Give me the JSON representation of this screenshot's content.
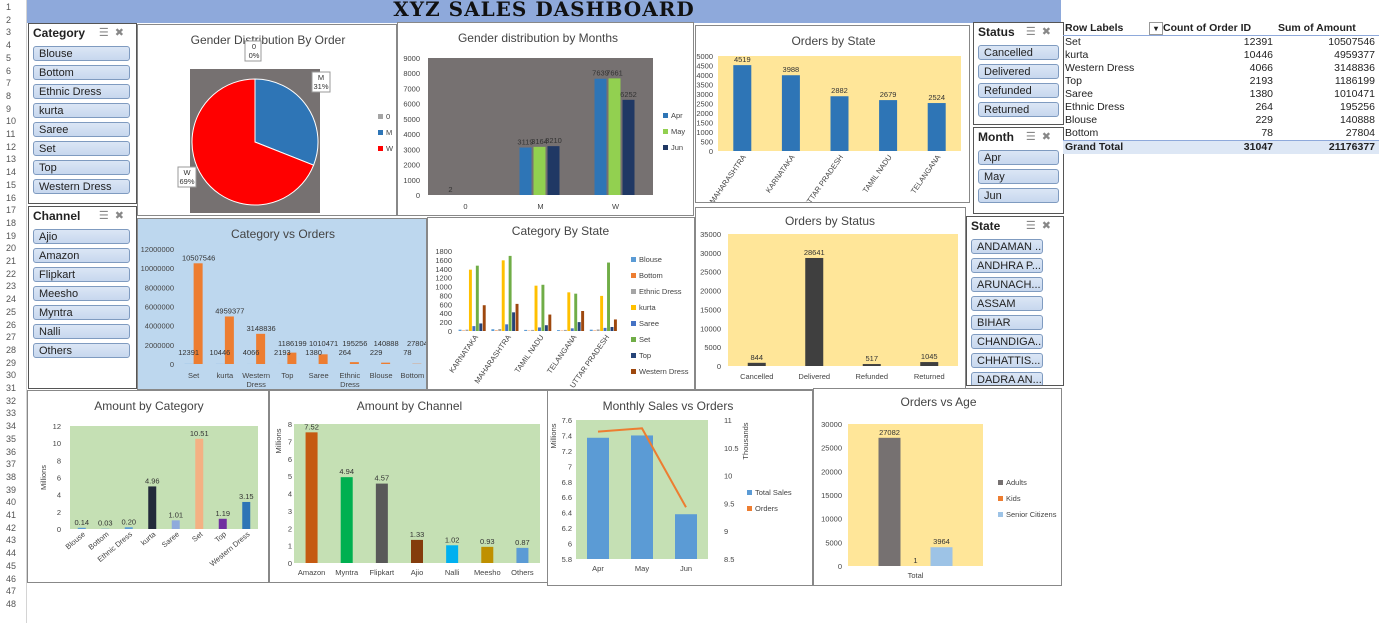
{
  "dashboard_title": "XYZ SALES DASHBOARD",
  "row_numbers": [
    "1",
    "2",
    "3",
    "4",
    "5",
    "6",
    "7",
    "8",
    "9",
    "10",
    "11",
    "12",
    "13",
    "14",
    "15",
    "16",
    "17",
    "18",
    "19",
    "20",
    "21",
    "22",
    "23",
    "24",
    "25",
    "26",
    "27",
    "28",
    "29",
    "30",
    "31",
    "32",
    "33",
    "34",
    "35",
    "36",
    "37",
    "38",
    "39",
    "40",
    "41",
    "42",
    "43",
    "44",
    "45",
    "46",
    "47",
    "48"
  ],
  "slicers": {
    "category": {
      "title": "Category",
      "items": [
        "Blouse",
        "Bottom",
        "Ethnic Dress",
        "kurta",
        "Saree",
        "Set",
        "Top",
        "Western Dress"
      ]
    },
    "channel": {
      "title": "Channel",
      "items": [
        "Ajio",
        "Amazon",
        "Flipkart",
        "Meesho",
        "Myntra",
        "Nalli",
        "Others"
      ]
    },
    "status": {
      "title": "Status",
      "items": [
        "Cancelled",
        "Delivered",
        "Refunded",
        "Returned"
      ]
    },
    "month": {
      "title": "Month",
      "items": [
        "Apr",
        "May",
        "Jun"
      ]
    },
    "state": {
      "title": "State",
      "items": [
        "ANDAMAN ...",
        "ANDHRA P...",
        "ARUNACH...",
        "ASSAM",
        "BIHAR",
        "CHANDIGA...",
        "CHHATTIS...",
        "DADRA AN..."
      ]
    }
  },
  "pivot": {
    "headers": [
      "Row Labels",
      "Count of Order ID",
      "Sum of Amount"
    ],
    "rows": [
      [
        "Set",
        "12391",
        "10507546"
      ],
      [
        "kurta",
        "10446",
        "4959377"
      ],
      [
        "Western Dress",
        "4066",
        "3148836"
      ],
      [
        "Top",
        "2193",
        "1186199"
      ],
      [
        "Saree",
        "1380",
        "1010471"
      ],
      [
        "Ethnic Dress",
        "264",
        "195256"
      ],
      [
        "Blouse",
        "229",
        "140888"
      ],
      [
        "Bottom",
        "78",
        "27804"
      ]
    ],
    "total": [
      "Grand Total",
      "31047",
      "21176377"
    ]
  },
  "chart_data": [
    {
      "id": "gender_pie",
      "type": "pie",
      "title": "Gender Distribution By Order",
      "categories": [
        "0",
        "M",
        "W"
      ],
      "values": [
        0,
        31,
        69
      ],
      "colors": [
        "#a5a5a5",
        "#2e75b6",
        "#ff0000"
      ],
      "labels": [
        "0\n0%",
        "M\n31%",
        "W\n69%"
      ],
      "legend": "right"
    },
    {
      "id": "gender_month",
      "type": "bar",
      "title": "Gender distribution by Months",
      "categories": [
        "0",
        "M",
        "W"
      ],
      "ylim": [
        0,
        9000
      ],
      "yticks": [
        0,
        1000,
        2000,
        3000,
        4000,
        5000,
        6000,
        7000,
        8000,
        9000
      ],
      "series": [
        {
          "name": "Apr",
          "values": [
            2,
            3119,
            7639
          ],
          "color": "#2e75b6"
        },
        {
          "name": "May",
          "values": [
            0,
            3164,
            7661
          ],
          "color": "#92d050"
        },
        {
          "name": "Jun",
          "values": [
            0,
            3210,
            6252
          ],
          "color": "#203864"
        }
      ],
      "data_labels": [
        "2",
        "",
        "",
        "3119",
        "3164",
        "3210",
        "7639",
        "7661",
        "6252"
      ]
    },
    {
      "id": "orders_state",
      "type": "bar",
      "title": "Orders by State",
      "categories": [
        "MAHARASHTRA",
        "KARNATAKA",
        "UTTAR PRADESH",
        "TAMIL NADU",
        "TELANGANA"
      ],
      "values": [
        4519,
        3988,
        2882,
        2679,
        2524
      ],
      "ylim": [
        0,
        5000
      ],
      "yticks": [
        0,
        500,
        1000,
        1500,
        2000,
        2500,
        3000,
        3500,
        4000,
        4500,
        5000
      ]
    },
    {
      "id": "category_orders",
      "type": "bar",
      "title": "Category vs Orders",
      "categories": [
        "Set",
        "kurta",
        "Western Dress",
        "Top",
        "Saree",
        "Ethnic Dress",
        "Blouse",
        "Bottom"
      ],
      "series": [
        {
          "name": "Count of Order ID",
          "values": [
            12391,
            10446,
            4066,
            2193,
            1380,
            264,
            229,
            78
          ]
        },
        {
          "name": "Sum of Amount",
          "values": [
            10507546,
            4959377,
            3148836,
            1186199,
            1010471,
            195256,
            140888,
            27804
          ]
        }
      ],
      "ylim": [
        0,
        12000000
      ],
      "yticks": [
        0,
        2000000,
        4000000,
        6000000,
        8000000,
        10000000,
        12000000
      ]
    },
    {
      "id": "category_state",
      "type": "bar",
      "title": "Category By State",
      "categories": [
        "KARNATAKA",
        "MAHARASHTRA",
        "TAMIL NADU",
        "TELANGANA",
        "UTTAR PRADESH"
      ],
      "ylim": [
        0,
        1800
      ],
      "yticks": [
        0,
        200,
        400,
        600,
        800,
        1000,
        1200,
        1400,
        1600,
        1800
      ],
      "series": [
        {
          "name": "Blouse",
          "values": [
            30,
            40,
            25,
            20,
            30
          ],
          "color": "#5b9bd5"
        },
        {
          "name": "Bottom",
          "values": [
            10,
            12,
            8,
            8,
            10
          ],
          "color": "#ed7d31"
        },
        {
          "name": "Ethnic Dress",
          "values": [
            30,
            45,
            25,
            25,
            35
          ],
          "color": "#a5a5a5"
        },
        {
          "name": "kurta",
          "values": [
            1380,
            1590,
            1020,
            870,
            790
          ],
          "color": "#ffc000"
        },
        {
          "name": "Saree",
          "values": [
            110,
            150,
            80,
            60,
            70
          ],
          "color": "#4472c4"
        },
        {
          "name": "Set",
          "values": [
            1470,
            1690,
            1040,
            840,
            1540
          ],
          "color": "#70ad47"
        },
        {
          "name": "Top",
          "values": [
            170,
            420,
            130,
            200,
            90
          ],
          "color": "#264478"
        },
        {
          "name": "Western Dress",
          "values": [
            580,
            610,
            370,
            450,
            260
          ],
          "color": "#9e480e"
        }
      ]
    },
    {
      "id": "orders_status",
      "type": "bar",
      "title": "Orders by Status",
      "categories": [
        "Cancelled",
        "Delivered",
        "Refunded",
        "Returned"
      ],
      "values": [
        844,
        28641,
        517,
        1045
      ],
      "ylim": [
        0,
        35000
      ],
      "yticks": [
        0,
        5000,
        10000,
        15000,
        20000,
        25000,
        30000,
        35000
      ]
    },
    {
      "id": "amount_category",
      "type": "bar",
      "title": "Amount by Category",
      "ylabel": "Millions",
      "categories": [
        "Blouse",
        "Bottom",
        "Ethnic Dress",
        "kurta",
        "Saree",
        "Set",
        "Top",
        "Western Dress"
      ],
      "values": [
        0.14,
        0.03,
        0.2,
        4.96,
        1.01,
        10.51,
        1.19,
        3.15
      ],
      "colors": [
        "#5b9bd5",
        "#5b9bd5",
        "#5b9bd5",
        "#232a3b",
        "#8faadc",
        "#f4b183",
        "#7030a0",
        "#2e75b6"
      ],
      "ylim": [
        0,
        12
      ],
      "yticks": [
        0,
        2,
        4,
        6,
        8,
        10,
        12
      ]
    },
    {
      "id": "amount_channel",
      "type": "bar",
      "title": "Amount by Channel",
      "ylabel": "Millions",
      "categories": [
        "Amazon",
        "Myntra",
        "Flipkart",
        "Ajio",
        "Nalli",
        "Meesho",
        "Others"
      ],
      "values": [
        7.52,
        4.94,
        4.57,
        1.33,
        1.02,
        0.93,
        0.87
      ],
      "colors": [
        "#c55a11",
        "#00b050",
        "#595959",
        "#843c0c",
        "#00b0f0",
        "#bf9000",
        "#5b9bd5"
      ],
      "ylim": [
        0,
        8
      ],
      "yticks": [
        0,
        1,
        2,
        3,
        4,
        5,
        6,
        7,
        8
      ]
    },
    {
      "id": "monthly_sales",
      "type": "bar+line",
      "title": "Monthly Sales vs Orders",
      "categories": [
        "Apr",
        "May",
        "Jun"
      ],
      "series": [
        {
          "name": "Total Sales",
          "axis": "Millions",
          "values": [
            7.37,
            7.4,
            6.38
          ],
          "color": "#5b9bd5"
        },
        {
          "name": "Orders",
          "axis": "Thousands",
          "values": [
            10.79,
            10.85,
            9.43
          ],
          "color": "#ed7d31"
        }
      ],
      "ylim": [
        5.8,
        7.6
      ],
      "yticks": [
        5.8,
        6,
        6.2,
        6.4,
        6.6,
        6.8,
        7,
        7.2,
        7.4,
        7.6
      ],
      "y2lim": [
        8.5,
        11
      ],
      "y2ticks": [
        8.5,
        9,
        9.5,
        10,
        10.5,
        11
      ],
      "ylabel": "Millions",
      "y2label": "Thousands"
    },
    {
      "id": "orders_age",
      "type": "bar",
      "title": "Orders vs Age",
      "categories": [
        "Total"
      ],
      "series": [
        {
          "name": "Adults",
          "values": [
            27082
          ],
          "color": "#767171"
        },
        {
          "name": "Kids",
          "values": [
            1
          ],
          "color": "#ed7d31"
        },
        {
          "name": "Senior Citizens",
          "values": [
            3964
          ],
          "color": "#9dc3e6"
        }
      ],
      "ylim": [
        0,
        30000
      ],
      "yticks": [
        0,
        5000,
        10000,
        15000,
        20000,
        25000,
        30000
      ]
    }
  ]
}
